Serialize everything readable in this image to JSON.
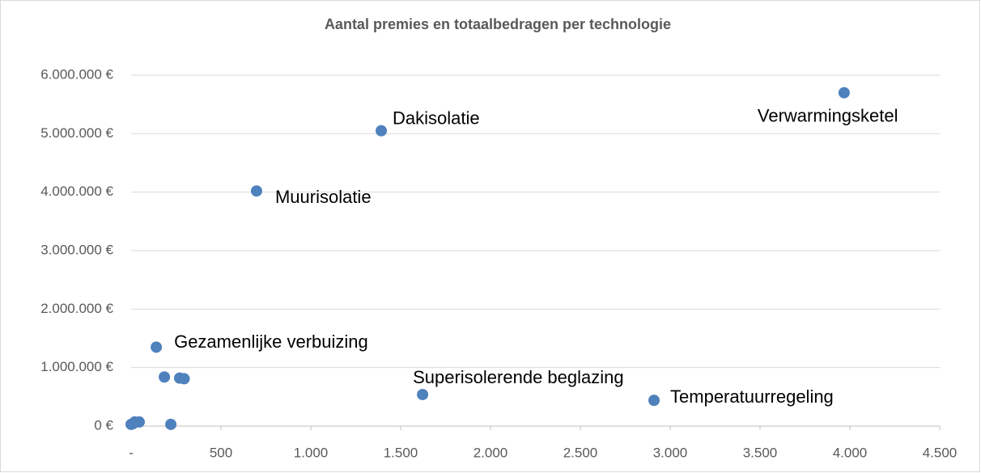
{
  "chart_data": {
    "type": "scatter",
    "title": "Aantal premies en totaalbedragen per technologie",
    "color": "#4f81bd",
    "x": [
      3968,
      1392,
      698,
      140,
      1622,
      2910,
      185,
      270,
      295,
      221,
      0,
      10,
      20,
      45
    ],
    "values": [
      5700000,
      5050000,
      4020000,
      1350000,
      540000,
      440000,
      840000,
      820000,
      810000,
      30000,
      30000,
      40000,
      70000,
      70000
    ],
    "labels": [
      "Verwarmingsketel",
      "Dakisolatie",
      "Muurisolatie",
      "Gezamenlijke verbuizing",
      "Superisolerende beglazing",
      "Temperatuurregeling",
      null,
      null,
      null,
      null,
      null,
      null,
      null,
      null
    ],
    "xlim": [
      0,
      4500
    ],
    "xticks": [
      {
        "value": 0,
        "label": "-"
      },
      500,
      {
        "value": 1000,
        "label": "1.000"
      },
      {
        "value": 1500,
        "label": "1.500"
      },
      {
        "value": 2000,
        "label": "2.000"
      },
      {
        "value": 2500,
        "label": "2.500"
      },
      {
        "value": 3000,
        "label": "3.000"
      },
      {
        "value": 3500,
        "label": "3.500"
      },
      {
        "value": 4000,
        "label": "4.000"
      },
      {
        "value": 4500,
        "label": "4.500"
      }
    ],
    "ylim": [
      0,
      6000000
    ],
    "yticks": [
      {
        "value": 0,
        "label": "0 €"
      },
      {
        "value": 1000000,
        "label": "1.000.000 €"
      },
      {
        "value": 2000000,
        "label": "2.000.000 €"
      },
      {
        "value": 3000000,
        "label": "3.000.000 €"
      },
      {
        "value": 4000000,
        "label": "4.000.000 €"
      },
      {
        "value": 5000000,
        "label": "5.000.000 €"
      },
      {
        "value": 6000000,
        "label": "6.000.000 €"
      }
    ],
    "grid": true
  }
}
